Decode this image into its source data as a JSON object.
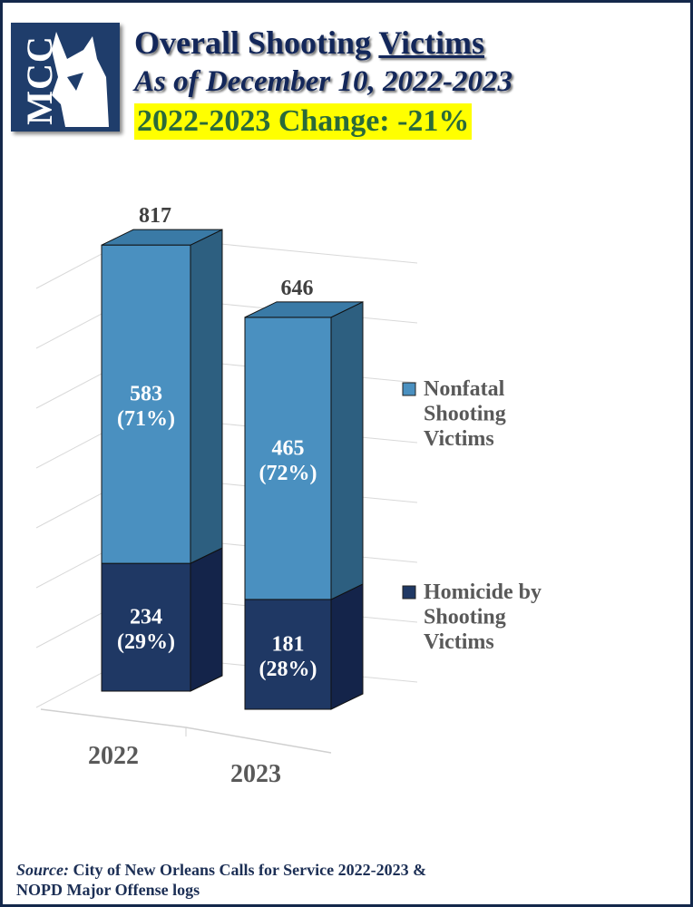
{
  "header": {
    "logo_text": "MCC",
    "title_prefix": "Overall Shooting ",
    "title_underlined": "Victims",
    "subtitle": "As of December 10, 2022-2023",
    "change_banner": "2022-2023 Change: -21%"
  },
  "chart_data": {
    "type": "bar",
    "stacked": true,
    "three_d": true,
    "categories": [
      "2022",
      "2023"
    ],
    "series": [
      {
        "name": "Homicide by Shooting Victims",
        "values": [
          234,
          181
        ],
        "labels": [
          "234\n(29%)",
          "181\n(28%)"
        ],
        "color": "#1f3864"
      },
      {
        "name": "Nonfatal Shooting Victims",
        "values": [
          583,
          465
        ],
        "labels": [
          "583\n(71%)",
          "465\n(72%)"
        ],
        "color": "#4a90c0"
      }
    ],
    "totals": [
      "817",
      "646"
    ],
    "legend": [
      "Nonfatal\nShooting\nVictims",
      "Homicide by\nShooting\nVictims"
    ],
    "grid": true,
    "legend_position": "right"
  },
  "footer": {
    "source_label": "Source:",
    "source_text": " City of New Orleans Calls for Service 2022-2023 &",
    "source_line2": "NOPD Major Offense logs"
  }
}
